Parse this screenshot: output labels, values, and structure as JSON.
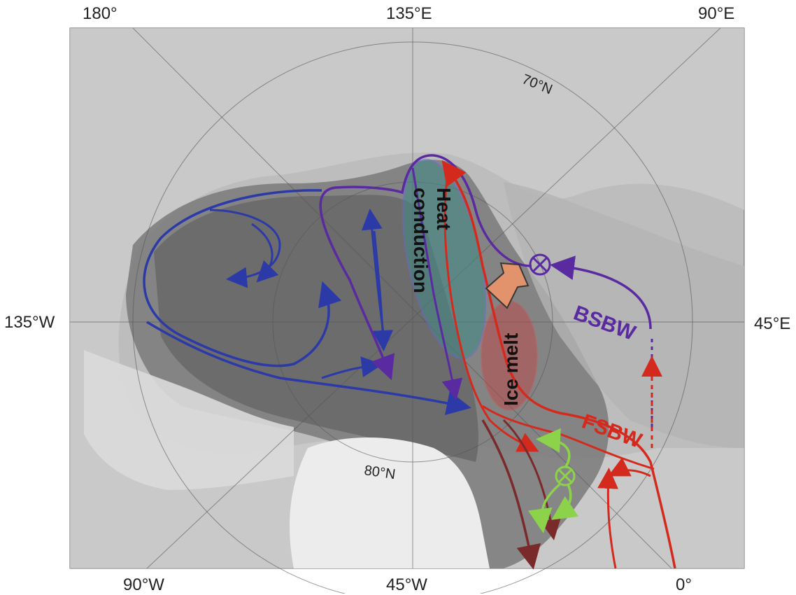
{
  "axes": {
    "top": [
      "180°",
      "135°E",
      "90°E"
    ],
    "bottom": [
      "90°W",
      "45°W",
      "0°"
    ],
    "left": "135°W",
    "right": "45°E"
  },
  "latitude_labels": {
    "lat70": "70°N",
    "lat80": "80°N"
  },
  "annotations": {
    "heat_line1": "Heat",
    "heat_line2": "conduction",
    "ice_melt": "Ice melt",
    "bsbw": "BSBW",
    "fsbw": "FSBW"
  },
  "colors": {
    "bsbw": "#5a2aa0",
    "fsbw": "#d42a1e",
    "blue_circulation": "#2c3aa8",
    "green_flow": "#8cd24a",
    "dark_red_flow": "#7a2a2a",
    "heat_zone": "#3f8a86",
    "melt_zone": "#c84040",
    "heat_arrow": "#e8946a"
  }
}
